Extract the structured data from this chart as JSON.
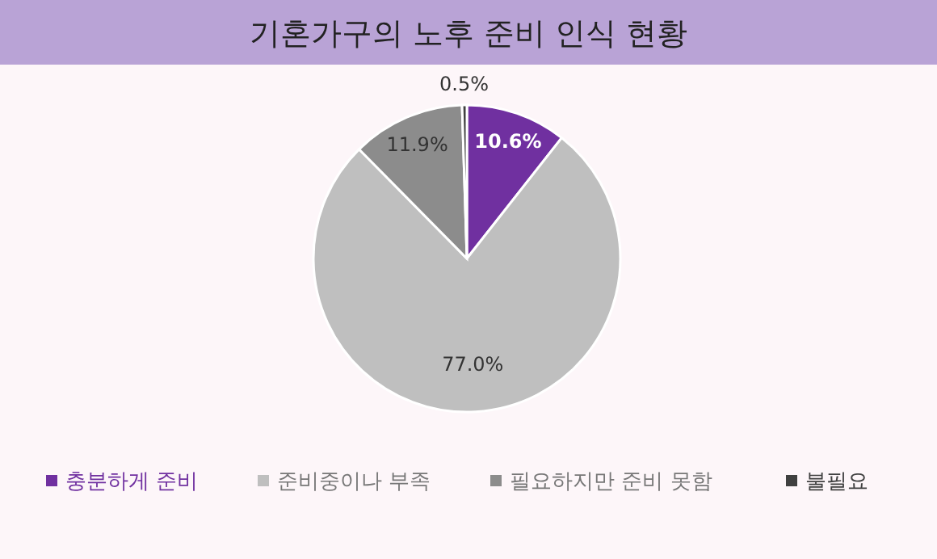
{
  "chart_data": {
    "type": "pie",
    "title": "기혼가구의 노후 준비 인식 현황",
    "categories": [
      "충분하게 준비",
      "준비중이나 부족",
      "필요하지만 준비 못함",
      "불필요"
    ],
    "values": [
      10.6,
      77.0,
      11.9,
      0.5
    ],
    "colors": [
      "#7030a0",
      "#bfbfbf",
      "#8c8c8c",
      "#404040"
    ],
    "value_labels": [
      "10.6%",
      "77.0%",
      "11.9%",
      "0.5%"
    ],
    "legend": "bottom"
  }
}
